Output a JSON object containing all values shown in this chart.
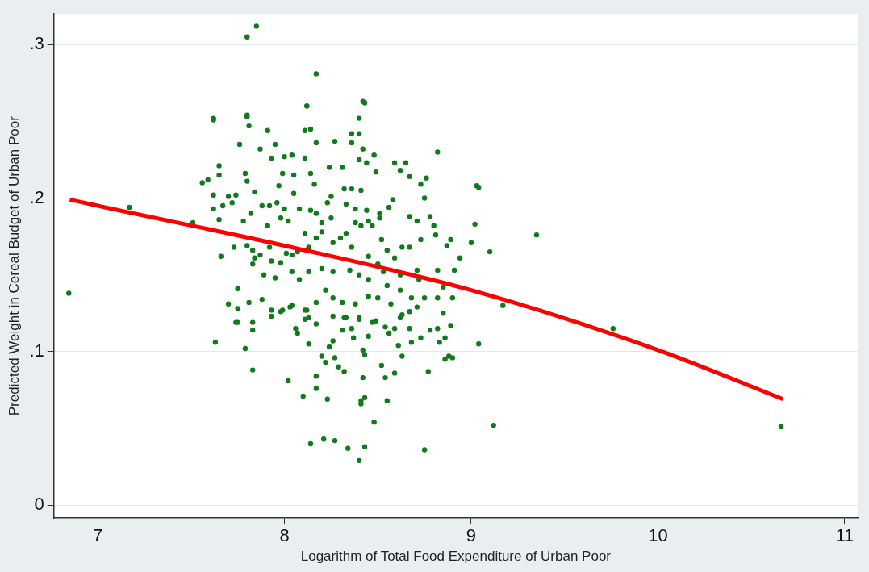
{
  "chart_data": {
    "type": "scatter",
    "xlabel": "Logarithm of Total Food Expenditure of Urban Poor",
    "ylabel": "Predicted Weight in Cereal Budget of Urban Poor",
    "xlim": [
      6.765,
      11.07
    ],
    "ylim": [
      -0.0085,
      0.32
    ],
    "xticks": [
      7,
      8,
      9,
      10,
      11
    ],
    "yticks": [
      {
        "value": 0,
        "label": "0"
      },
      {
        "value": 0.1,
        "label": ".1"
      },
      {
        "value": 0.2,
        "label": ".2"
      },
      {
        "value": 0.3,
        "label": ".3"
      }
    ],
    "grid": "y",
    "legend": false,
    "marker": "circle",
    "series": [
      {
        "color": "#117a1c",
        "x": [
          6.845,
          7.17,
          7.51,
          7.8,
          7.85,
          8.17,
          8.42,
          8.12,
          7.62,
          7.8,
          9.35,
          9.76,
          10.66,
          9.12,
          8.75,
          8.4,
          8.14,
          8.21,
          8.27,
          8.34,
          8.43,
          8.82,
          9.03,
          9.17,
          9.04,
          8.9,
          7.63,
          7.83,
          8.02,
          8.1,
          8.17,
          8.23,
          8.41,
          8.43,
          8.54,
          8.48,
          8.55,
          8.77,
          8.86,
          7.79,
          8.59,
          8.42,
          8.52,
          8.88,
          8.32,
          8.29,
          8.17,
          8.41,
          7.62,
          7.8,
          7.81,
          8.12,
          8.43,
          8.4,
          7.91,
          8.11,
          8.14,
          8.36,
          8.4,
          7.76,
          7.87,
          7.95,
          8.17,
          8.27,
          8.36,
          8.42,
          8.48,
          8.65,
          8.59,
          7.65,
          7.65,
          7.56,
          7.59,
          7.79,
          7.8,
          7.93,
          8.0,
          8.04,
          8.11,
          8.24,
          8.31,
          8.4,
          8.44,
          8.49,
          8.62,
          8.67,
          8.76,
          8.73,
          8.75,
          9.04,
          7.62,
          7.7,
          7.74,
          7.62,
          7.65,
          7.67,
          7.72,
          7.78,
          7.82,
          7.84,
          7.88,
          7.92,
          7.96,
          7.97,
          7.99,
          8.05,
          8.0,
          8.05,
          8.08,
          8.14,
          8.16,
          8.14,
          8.17,
          8.23,
          8.25,
          8.32,
          8.36,
          8.41,
          8.33,
          8.38,
          8.44,
          8.51,
          8.56,
          8.58,
          8.25,
          8.2,
          7.98,
          8.02,
          8.38,
          8.45,
          8.51,
          8.67,
          8.71,
          8.78,
          8.8,
          9.02,
          9.1,
          9.0,
          8.87,
          8.89,
          8.81,
          8.73,
          8.67,
          8.63,
          8.94,
          8.82,
          8.91,
          7.66,
          7.73,
          7.8,
          7.83,
          7.84,
          7.87,
          7.91,
          7.92,
          7.93,
          7.98,
          8.01,
          8.04,
          8.07,
          8.11,
          8.13,
          8.17,
          8.2,
          8.26,
          8.3,
          8.33,
          8.36,
          8.41,
          8.47,
          8.52,
          8.55,
          8.59,
          8.45,
          8.5,
          8.53,
          8.62,
          8.71,
          8.72,
          8.85,
          8.9,
          8.82,
          8.75,
          8.68,
          8.62,
          8.55,
          8.45,
          8.4,
          8.35,
          8.26,
          8.2,
          8.13,
          8.08,
          8.04,
          7.95,
          7.89,
          7.83,
          7.75,
          7.7,
          7.75,
          7.81,
          7.88,
          7.93,
          7.99,
          8.04,
          8.11,
          8.17,
          8.22,
          8.26,
          8.31,
          8.38,
          8.45,
          8.5,
          8.57,
          8.67,
          8.63,
          8.71,
          7.83,
          7.74,
          8.13,
          8.26,
          8.32,
          8.4,
          8.47,
          7.75,
          7.83,
          7.93,
          7.98,
          8.03,
          8.06,
          8.07,
          8.11,
          8.13,
          8.12,
          8.17,
          8.2,
          8.22,
          8.24,
          8.26,
          8.27,
          8.31,
          8.33,
          8.36,
          8.37,
          8.4,
          8.42,
          8.43,
          8.45,
          8.49,
          8.54,
          8.56,
          8.59,
          8.62,
          8.61,
          8.63,
          8.67,
          8.68,
          8.73,
          8.78,
          8.82,
          8.86,
          8.89,
          8.85,
          8.83
        ],
        "values": [
          0.138,
          0.194,
          0.184,
          0.305,
          0.312,
          0.281,
          0.263,
          0.26,
          0.252,
          0.254,
          0.176,
          0.115,
          0.051,
          0.052,
          0.036,
          0.029,
          0.04,
          0.043,
          0.042,
          0.037,
          0.038,
          0.23,
          0.208,
          0.13,
          0.105,
          0.096,
          0.106,
          0.088,
          0.081,
          0.071,
          0.084,
          0.069,
          0.068,
          0.07,
          0.083,
          0.054,
          0.068,
          0.087,
          0.095,
          0.102,
          0.086,
          0.083,
          0.091,
          0.097,
          0.087,
          0.09,
          0.076,
          0.066,
          0.251,
          0.253,
          0.247,
          0.26,
          0.262,
          0.252,
          0.244,
          0.244,
          0.245,
          0.242,
          0.242,
          0.235,
          0.232,
          0.235,
          0.236,
          0.237,
          0.236,
          0.232,
          0.228,
          0.223,
          0.223,
          0.221,
          0.215,
          0.21,
          0.212,
          0.216,
          0.211,
          0.226,
          0.227,
          0.228,
          0.226,
          0.22,
          0.22,
          0.225,
          0.223,
          0.217,
          0.218,
          0.214,
          0.213,
          0.209,
          0.2,
          0.207,
          0.202,
          0.201,
          0.202,
          0.193,
          0.186,
          0.195,
          0.197,
          0.185,
          0.19,
          0.204,
          0.195,
          0.195,
          0.197,
          0.208,
          0.216,
          0.215,
          0.193,
          0.203,
          0.193,
          0.216,
          0.209,
          0.192,
          0.19,
          0.197,
          0.201,
          0.206,
          0.206,
          0.205,
          0.196,
          0.193,
          0.192,
          0.19,
          0.194,
          0.199,
          0.187,
          0.184,
          0.187,
          0.185,
          0.184,
          0.185,
          0.187,
          0.188,
          0.185,
          0.188,
          0.182,
          0.183,
          0.165,
          0.171,
          0.169,
          0.173,
          0.176,
          0.173,
          0.168,
          0.168,
          0.161,
          0.153,
          0.153,
          0.162,
          0.168,
          0.169,
          0.166,
          0.161,
          0.163,
          0.182,
          0.168,
          0.159,
          0.158,
          0.164,
          0.163,
          0.165,
          0.177,
          0.168,
          0.174,
          0.178,
          0.171,
          0.174,
          0.177,
          0.168,
          0.182,
          0.182,
          0.173,
          0.166,
          0.161,
          0.162,
          0.157,
          0.152,
          0.15,
          0.153,
          0.147,
          0.142,
          0.135,
          0.135,
          0.135,
          0.135,
          0.14,
          0.143,
          0.147,
          0.15,
          0.153,
          0.152,
          0.154,
          0.152,
          0.147,
          0.152,
          0.148,
          0.15,
          0.157,
          0.141,
          0.131,
          0.128,
          0.132,
          0.134,
          0.127,
          0.127,
          0.13,
          0.127,
          0.132,
          0.14,
          0.135,
          0.132,
          0.131,
          0.136,
          0.135,
          0.131,
          0.126,
          0.124,
          0.129,
          0.119,
          0.119,
          0.122,
          0.123,
          0.122,
          0.122,
          0.119,
          0.119,
          0.114,
          0.123,
          0.126,
          0.129,
          0.115,
          0.112,
          0.121,
          0.105,
          0.127,
          0.118,
          0.097,
          0.093,
          0.103,
          0.107,
          0.096,
          0.114,
          0.122,
          0.115,
          0.109,
          0.121,
          0.101,
          0.098,
          0.11,
          0.12,
          0.116,
          0.112,
          0.115,
          0.122,
          0.104,
          0.097,
          0.115,
          0.106,
          0.109,
          0.114,
          0.115,
          0.109,
          0.117,
          0.125,
          0.106
        ]
      },
      {
        "type": "line",
        "color": "#ff0000",
        "marker": "none",
        "line_style": "solid",
        "x": [
          6.85,
          7,
          8,
          9,
          10,
          10.67
        ],
        "values": [
          0.199,
          0.195,
          0.169,
          0.14,
          0.101,
          0.069
        ]
      }
    ]
  }
}
